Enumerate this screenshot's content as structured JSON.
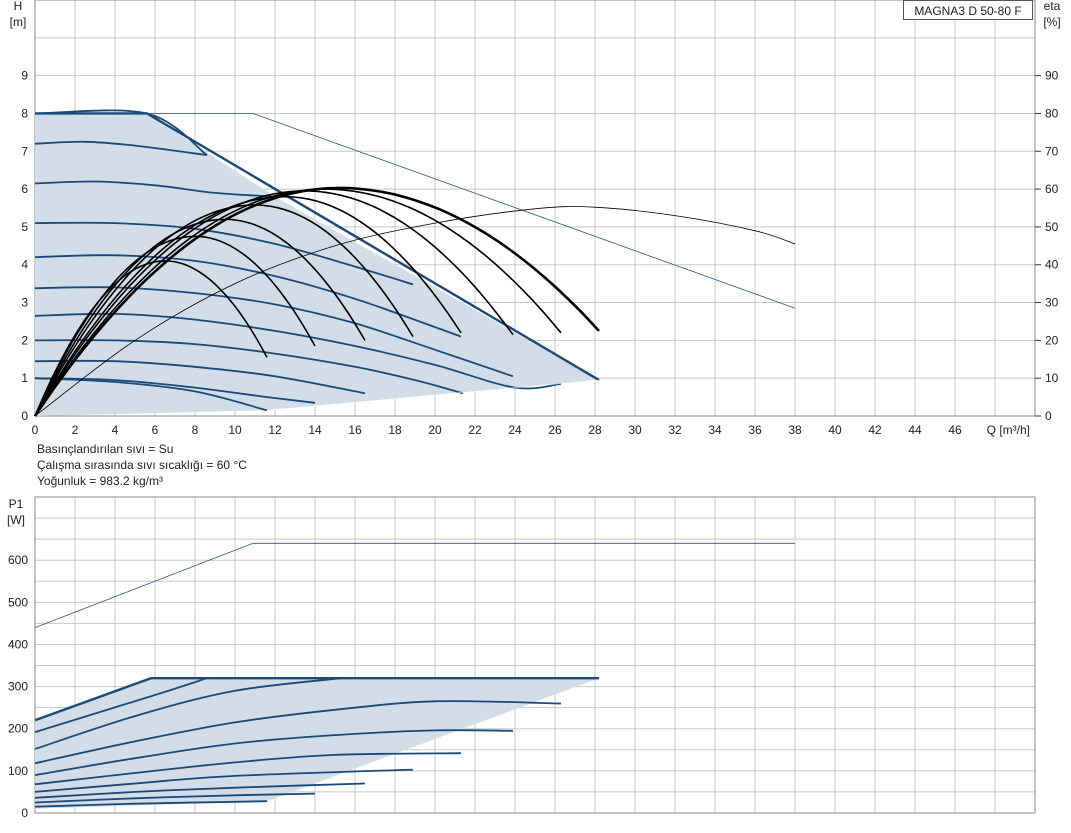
{
  "model_label": "MAGNA3 D 50-80 F",
  "fluid_notes": [
    "Basınçlandırılan sıvı = Su",
    "Çalışma sırasında sıvı sıcaklığı = 60 °C",
    "Yoğunluk = 983.2 kg/m³"
  ],
  "colors": {
    "curve": "#1a4a7a",
    "area": "#d3dde8",
    "grid": "#c8c8c8",
    "eff": "#000000",
    "single": "#2c5a88"
  },
  "chart_data": [
    {
      "type": "line",
      "name": "head_curve",
      "y_axis_label": [
        "H",
        "[m]"
      ],
      "y2_axis_label": [
        "eta",
        "[%]"
      ],
      "x_axis_label": "Q [m³/h]",
      "xlim": [
        0,
        50
      ],
      "ylim": [
        0,
        11
      ],
      "y2lim": [
        0,
        110
      ],
      "x_ticks": [
        0,
        2,
        4,
        6,
        8,
        10,
        12,
        14,
        16,
        18,
        20,
        22,
        24,
        26,
        28,
        30,
        32,
        34,
        36,
        38,
        40,
        42,
        44,
        46
      ],
      "y_ticks": [
        0,
        1,
        2,
        3,
        4,
        5,
        6,
        7,
        8,
        9
      ],
      "y2_ticks": [
        0,
        10,
        20,
        30,
        40,
        50,
        60,
        70,
        80,
        90
      ],
      "grid": true,
      "operating_area_outline": [
        [
          0,
          8
        ],
        [
          5.6,
          8
        ],
        [
          12,
          5.8
        ],
        [
          28.2,
          0.95
        ],
        [
          11.6,
          0.15
        ],
        [
          0,
          0
        ]
      ],
      "speed_curves": [
        {
          "points": [
            [
              0,
              8
            ],
            [
              5.6,
              8
            ],
            [
              8.6,
              6.9
            ]
          ]
        },
        {
          "points": [
            [
              0,
              7.2
            ],
            [
              2.5,
              7.25
            ],
            [
              5,
              7.15
            ],
            [
              8.6,
              6.9
            ]
          ]
        },
        {
          "points": [
            [
              0,
              6.15
            ],
            [
              3,
              6.2
            ],
            [
              6,
              6.1
            ],
            [
              9,
              5.9
            ],
            [
              12,
              5.8
            ]
          ]
        },
        {
          "points": [
            [
              0,
              5.1
            ],
            [
              4,
              5.1
            ],
            [
              8,
              4.95
            ],
            [
              12,
              4.55
            ],
            [
              16,
              3.95
            ],
            [
              18.9,
              3.48
            ]
          ]
        },
        {
          "points": [
            [
              0,
              4.2
            ],
            [
              4,
              4.25
            ],
            [
              8,
              4.1
            ],
            [
              12,
              3.7
            ],
            [
              16,
              3.1
            ],
            [
              20,
              2.35
            ],
            [
              21.3,
              2.1
            ]
          ]
        },
        {
          "points": [
            [
              0,
              3.38
            ],
            [
              4,
              3.4
            ],
            [
              8,
              3.25
            ],
            [
              12,
              2.95
            ],
            [
              16,
              2.45
            ],
            [
              20,
              1.75
            ],
            [
              23.9,
              1.05
            ]
          ]
        },
        {
          "points": [
            [
              0,
              2.65
            ],
            [
              4,
              2.7
            ],
            [
              8,
              2.55
            ],
            [
              12,
              2.25
            ],
            [
              16,
              1.85
            ],
            [
              20,
              1.35
            ],
            [
              24,
              0.75
            ],
            [
              26.3,
              0.85
            ]
          ]
        },
        {
          "points": [
            [
              0,
              2.0
            ],
            [
              4,
              2.0
            ],
            [
              8,
              1.9
            ],
            [
              12,
              1.65
            ],
            [
              16,
              1.3
            ],
            [
              19,
              0.95
            ],
            [
              21.4,
              0.6
            ]
          ]
        },
        {
          "points": [
            [
              0,
              1.45
            ],
            [
              4,
              1.45
            ],
            [
              8,
              1.3
            ],
            [
              12,
              1.05
            ],
            [
              16.5,
              0.6
            ]
          ]
        },
        {
          "points": [
            [
              0,
              1.0
            ],
            [
              4,
              0.95
            ],
            [
              8,
              0.75
            ],
            [
              11.6,
              0.5
            ],
            [
              14,
              0.35
            ]
          ]
        },
        {
          "points": [
            [
              0,
              1.0
            ],
            [
              4,
              0.9
            ],
            [
              8,
              0.65
            ],
            [
              11.6,
              0.15
            ]
          ]
        }
      ],
      "max_curve_thin": [
        [
          0,
          8
        ],
        [
          10.9,
          8
        ],
        [
          38,
          2.85
        ]
      ],
      "eta_thin": [
        [
          0,
          0
        ],
        [
          5,
          20
        ],
        [
          10,
          35
        ],
        [
          15,
          45
        ],
        [
          20,
          51
        ],
        [
          25,
          54.8
        ],
        [
          28,
          55.2
        ],
        [
          32,
          53
        ],
        [
          36,
          49
        ],
        [
          38,
          45.5
        ]
      ],
      "eta_curves": [
        {
          "end": [
            11.6,
            15.5
          ],
          "peak": [
            6.5,
            41
          ]
        },
        {
          "end": [
            14,
            18.5
          ],
          "peak": [
            8,
            47.5
          ]
        },
        {
          "end": [
            16.5,
            20
          ],
          "peak": [
            9.5,
            52
          ]
        },
        {
          "end": [
            18.9,
            21
          ],
          "peak": [
            11,
            55.8
          ]
        },
        {
          "end": [
            21.3,
            22
          ],
          "peak": [
            12.5,
            58
          ]
        },
        {
          "end": [
            23.9,
            21.5
          ],
          "peak": [
            13.5,
            59.5
          ]
        },
        {
          "end": [
            26.3,
            22
          ],
          "peak": [
            14.5,
            60
          ]
        },
        {
          "end": [
            28.2,
            22.5
          ],
          "peak": [
            15.2,
            60.3
          ]
        }
      ]
    },
    {
      "type": "line",
      "name": "power_curve",
      "y_axis_label": [
        "P1",
        "[W]"
      ],
      "xlim": [
        0,
        50
      ],
      "ylim": [
        0,
        750
      ],
      "y_ticks": [
        0,
        100,
        200,
        300,
        400,
        500,
        600
      ],
      "grid": true,
      "operating_area_outline": [
        [
          0,
          220
        ],
        [
          5.8,
          320
        ],
        [
          28.2,
          320
        ],
        [
          11.6,
          28
        ],
        [
          0,
          10
        ]
      ],
      "max_curve_thin": [
        [
          0,
          440
        ],
        [
          10.9,
          640
        ],
        [
          38,
          640
        ]
      ],
      "power_curves": [
        {
          "points": [
            [
              0,
              220
            ],
            [
              5.8,
              320
            ],
            [
              28.2,
              320
            ]
          ]
        },
        {
          "points": [
            [
              0,
              192
            ],
            [
              6,
              280
            ],
            [
              8.6,
              320
            ]
          ]
        },
        {
          "points": [
            [
              0,
              152
            ],
            [
              5,
              230
            ],
            [
              10,
              290
            ],
            [
              15.3,
              320
            ]
          ]
        },
        {
          "points": [
            [
              0,
              118
            ],
            [
              5,
              170
            ],
            [
              10,
              215
            ],
            [
              15,
              245
            ],
            [
              20,
              265
            ],
            [
              26.3,
              260
            ]
          ]
        },
        {
          "points": [
            [
              0,
              90
            ],
            [
              5,
              130
            ],
            [
              10,
              165
            ],
            [
              15,
              185
            ],
            [
              20,
              196
            ],
            [
              23.9,
              195
            ]
          ]
        },
        {
          "points": [
            [
              0,
              68
            ],
            [
              5,
              95
            ],
            [
              10,
              120
            ],
            [
              15,
              138
            ],
            [
              21.3,
              142
            ]
          ]
        },
        {
          "points": [
            [
              0,
              50
            ],
            [
              5,
              70
            ],
            [
              10,
              88
            ],
            [
              18.9,
              103
            ]
          ]
        },
        {
          "points": [
            [
              0,
              36
            ],
            [
              5,
              50
            ],
            [
              10,
              60
            ],
            [
              16.5,
              70
            ]
          ]
        },
        {
          "points": [
            [
              0,
              25
            ],
            [
              5,
              35
            ],
            [
              10,
              42
            ],
            [
              14,
              46
            ]
          ]
        },
        {
          "points": [
            [
              0,
              15
            ],
            [
              5,
              22
            ],
            [
              11.6,
              28
            ]
          ]
        }
      ]
    }
  ]
}
